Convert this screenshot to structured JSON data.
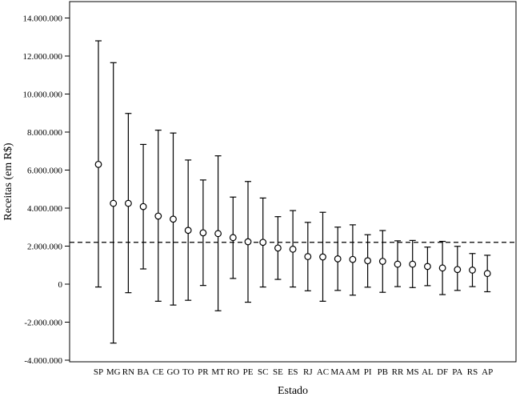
{
  "chart_data": {
    "type": "errorbar",
    "xlabel": "Estado",
    "ylabel": "Receitas (em R$)",
    "ylim": [
      -4000000,
      15000000
    ],
    "yticks": [
      {
        "value": -4000000,
        "label": "-4.000.000"
      },
      {
        "value": -2000000,
        "label": "-2.000.000"
      },
      {
        "value": 0,
        "label": "0"
      },
      {
        "value": 2000000,
        "label": "2.000.000"
      },
      {
        "value": 4000000,
        "label": "4.000.000"
      },
      {
        "value": 6000000,
        "label": "6.000.000"
      },
      {
        "value": 8000000,
        "label": "8.000.000"
      },
      {
        "value": 10000000,
        "label": "10.000.000"
      },
      {
        "value": 12000000,
        "label": "12.000.000"
      },
      {
        "value": 14000000,
        "label": "14.000.000"
      }
    ],
    "reference_line": {
      "value": 2200000,
      "style": "dashed"
    },
    "grid": false,
    "categories": [
      "SP",
      "MG",
      "RN",
      "BA",
      "CE",
      "GO",
      "TO",
      "PR",
      "MT",
      "RO",
      "PE",
      "SC",
      "SE",
      "ES",
      "RJ",
      "AC",
      "MA",
      "AM",
      "PI",
      "PB",
      "RR",
      "MS",
      "AL",
      "DF",
      "PA",
      "RS",
      "AP"
    ],
    "means": [
      6300000,
      4250000,
      4250000,
      4080000,
      3580000,
      3420000,
      2830000,
      2700000,
      2660000,
      2450000,
      2230000,
      2200000,
      1900000,
      1840000,
      1450000,
      1430000,
      1330000,
      1300000,
      1230000,
      1200000,
      1050000,
      1050000,
      930000,
      850000,
      770000,
      740000,
      560000
    ],
    "upper": [
      12800000,
      11650000,
      8980000,
      7350000,
      8100000,
      7950000,
      6530000,
      5480000,
      6750000,
      4580000,
      5400000,
      4530000,
      3550000,
      3870000,
      3250000,
      3780000,
      3000000,
      3120000,
      2600000,
      2820000,
      2280000,
      2300000,
      1950000,
      2250000,
      1990000,
      1610000,
      1520000
    ],
    "lower": [
      -150000,
      -3100000,
      -450000,
      800000,
      -900000,
      -1100000,
      -850000,
      -70000,
      -1400000,
      300000,
      -950000,
      -150000,
      250000,
      -150000,
      -350000,
      -900000,
      -330000,
      -580000,
      -160000,
      -430000,
      -130000,
      -180000,
      -80000,
      -550000,
      -330000,
      -130000,
      -400000
    ]
  }
}
